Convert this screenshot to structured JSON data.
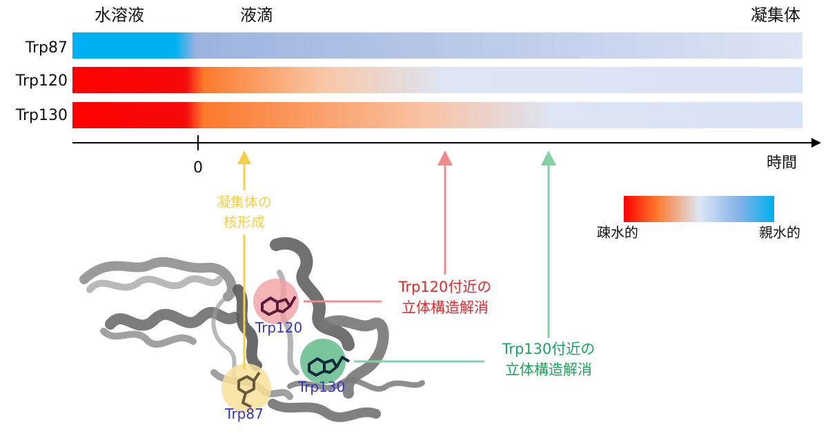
{
  "phases": {
    "aqueous": "水溶液",
    "droplet": "液滴",
    "aggregate": "凝集体"
  },
  "rows": [
    {
      "label": "Trp87"
    },
    {
      "label": "Trp120"
    },
    {
      "label": "Trp130"
    }
  ],
  "axis": {
    "zero": "0",
    "time": "時間"
  },
  "legend": {
    "hydrophobic": "疎水的",
    "hydrophilic": "親水的"
  },
  "events": {
    "nucleation": {
      "line1": "凝集体の",
      "line2": "核形成",
      "color": "#f6cf4a"
    },
    "trp120": {
      "line1": "Trp120付近の",
      "line2": "立体構造解消",
      "color": "#e8272a"
    },
    "trp130": {
      "line1": "Trp130付近の",
      "line2": "立体構造解消",
      "color": "#1aa35a"
    }
  },
  "structure": {
    "labels": {
      "trp120": "Trp120",
      "trp130": "Trp130",
      "trp87": "Trp87"
    },
    "label_color": "#3535c8"
  },
  "colors": {
    "hydrophobic": "#ff0000",
    "hydrophilic": "#00b0f0",
    "neutral": "#d9e2f3"
  }
}
